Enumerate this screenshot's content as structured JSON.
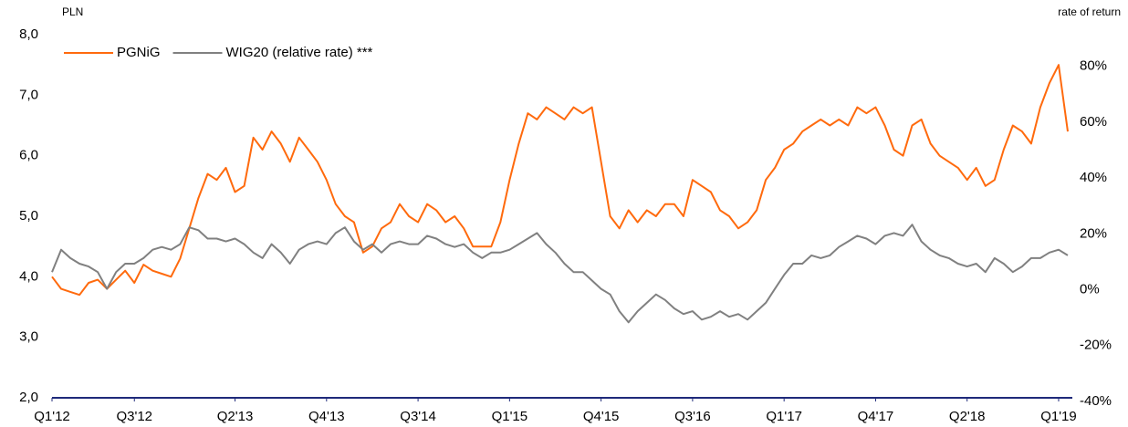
{
  "chart_data": {
    "type": "line",
    "y_label": "PLN",
    "y2_label": "rate of return",
    "legend": "upper left",
    "categories": [
      "Q1'12",
      null,
      null,
      null,
      null,
      null,
      null,
      null,
      null,
      "Q3'12",
      null,
      null,
      null,
      null,
      null,
      null,
      null,
      null,
      null,
      null,
      "Q2'13",
      null,
      null,
      null,
      null,
      null,
      null,
      null,
      null,
      null,
      "Q4'13",
      null,
      null,
      null,
      null,
      null,
      null,
      null,
      null,
      null,
      "Q3'14",
      null,
      null,
      null,
      null,
      null,
      null,
      null,
      null,
      null,
      "Q1'15",
      null,
      null,
      null,
      null,
      null,
      null,
      null,
      null,
      null,
      "Q4'15",
      null,
      null,
      null,
      null,
      null,
      null,
      null,
      null,
      null,
      "Q3'16",
      null,
      null,
      null,
      null,
      null,
      null,
      null,
      null,
      null,
      "Q1'17",
      null,
      null,
      null,
      null,
      null,
      null,
      null,
      null,
      null,
      "Q4'17",
      null,
      null,
      null,
      null,
      null,
      null,
      null,
      null,
      null,
      "Q2'18",
      null,
      null,
      null,
      null,
      null,
      null,
      null,
      null,
      null,
      "Q1'19",
      null
    ],
    "series": [
      {
        "name": "PGNiG",
        "color": "#ff6a0d",
        "values": [
          4.0,
          3.8,
          3.75,
          3.7,
          3.9,
          3.95,
          3.8,
          3.95,
          4.1,
          3.9,
          4.2,
          4.1,
          4.05,
          4.0,
          4.3,
          4.8,
          5.3,
          5.7,
          5.6,
          5.8,
          5.4,
          5.5,
          6.3,
          6.1,
          6.4,
          6.2,
          5.9,
          6.3,
          6.1,
          5.9,
          5.6,
          5.2,
          5.0,
          4.9,
          4.4,
          4.5,
          4.8,
          4.9,
          5.2,
          5.0,
          4.9,
          5.2,
          5.1,
          4.9,
          5.0,
          4.8,
          4.5,
          4.5,
          4.5,
          4.9,
          5.6,
          6.2,
          6.7,
          6.6,
          6.8,
          6.7,
          6.6,
          6.8,
          6.7,
          6.8,
          5.9,
          5.0,
          4.8,
          5.1,
          4.9,
          5.1,
          5.0,
          5.2,
          5.2,
          5.0,
          5.6,
          5.5,
          5.4,
          5.1,
          5.0,
          4.8,
          4.9,
          5.1,
          5.6,
          5.8,
          6.1,
          6.2,
          6.4,
          6.5,
          6.6,
          6.5,
          6.6,
          6.5,
          6.8,
          6.7,
          6.8,
          6.5,
          6.1,
          6.0,
          6.5,
          6.6,
          6.2,
          6.0,
          5.9,
          5.8,
          5.6,
          5.8,
          5.5,
          5.6,
          6.1,
          6.5,
          6.4,
          6.2,
          6.8,
          7.2,
          7.5,
          6.4
        ]
      },
      {
        "name": "WIG20 (relative rate) ***",
        "color": "#808080",
        "axis": "y2",
        "values": [
          5,
          13,
          10,
          8,
          7,
          5,
          -1,
          5,
          8,
          8,
          10,
          13,
          14,
          13,
          15,
          21,
          20,
          17,
          17,
          16,
          17,
          15,
          12,
          10,
          15,
          12,
          8,
          13,
          15,
          16,
          15,
          19,
          21,
          16,
          13,
          15,
          12,
          15,
          16,
          15,
          15,
          18,
          17,
          15,
          14,
          15,
          12,
          10,
          12,
          12,
          13,
          15,
          17,
          19,
          15,
          12,
          8,
          5,
          5,
          2,
          -1,
          -3,
          -9,
          -13,
          -9,
          -6,
          -3,
          -5,
          -8,
          -10,
          -9,
          -12,
          -11,
          -9,
          -11,
          -10,
          -12,
          -9,
          -6,
          -1,
          4,
          8,
          8,
          11,
          10,
          11,
          14,
          16,
          18,
          17,
          15,
          18,
          19,
          18,
          22,
          16,
          13,
          11,
          10,
          8,
          7,
          8,
          5,
          10,
          8,
          5,
          7,
          10,
          10,
          12,
          13,
          11
        ]
      }
    ],
    "ylim": [
      2,
      8
    ],
    "yticks": [
      {
        "value": 2,
        "label": "2,0"
      },
      {
        "value": 3,
        "label": "3,0"
      },
      {
        "value": 4,
        "label": "4,0"
      },
      {
        "value": 5,
        "label": "5,0"
      },
      {
        "value": 6,
        "label": "6,0"
      },
      {
        "value": 7,
        "label": "7,0"
      },
      {
        "value": 8,
        "label": "8,0"
      }
    ],
    "y2lim": [
      -40,
      90
    ],
    "y2ticks": [
      {
        "value": -40,
        "label": "-40%"
      },
      {
        "value": -20,
        "label": "-20%"
      },
      {
        "value": 0,
        "label": "0%"
      },
      {
        "value": 20,
        "label": "20%"
      },
      {
        "value": 40,
        "label": "40%"
      },
      {
        "value": 60,
        "label": "60%"
      },
      {
        "value": 80,
        "label": "80%"
      }
    ],
    "axis_color": "#1f2a7a"
  }
}
